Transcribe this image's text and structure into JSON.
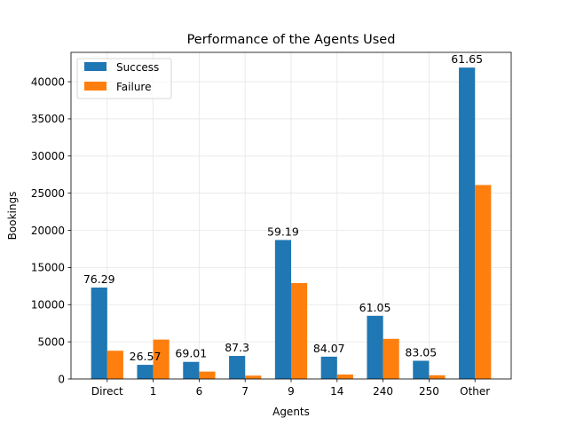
{
  "chart_data": {
    "type": "bar",
    "title": "Performance of the Agents Used",
    "xlabel": "Agents",
    "ylabel": "Bookings",
    "categories": [
      "Direct",
      "1",
      "6",
      "7",
      "9",
      "14",
      "240",
      "250",
      "Other"
    ],
    "series": [
      {
        "name": "Success",
        "values": [
          12300,
          1900,
          2300,
          3100,
          18700,
          3000,
          8500,
          2450,
          41900
        ]
      },
      {
        "name": "Failure",
        "values": [
          3800,
          5300,
          1000,
          450,
          12900,
          600,
          5400,
          500,
          26100
        ]
      }
    ],
    "data_labels": [
      "76.29",
      "26.57",
      "69.01",
      "87.3",
      "59.19",
      "84.07",
      "61.05",
      "83.05",
      "61.65"
    ],
    "yticks": [
      0,
      5000,
      10000,
      15000,
      20000,
      25000,
      30000,
      35000,
      40000
    ],
    "ylim": [
      0,
      43950
    ],
    "grid": true,
    "legend_position": "top-left",
    "colors": [
      "#1f77b4",
      "#ff7f0e"
    ]
  }
}
